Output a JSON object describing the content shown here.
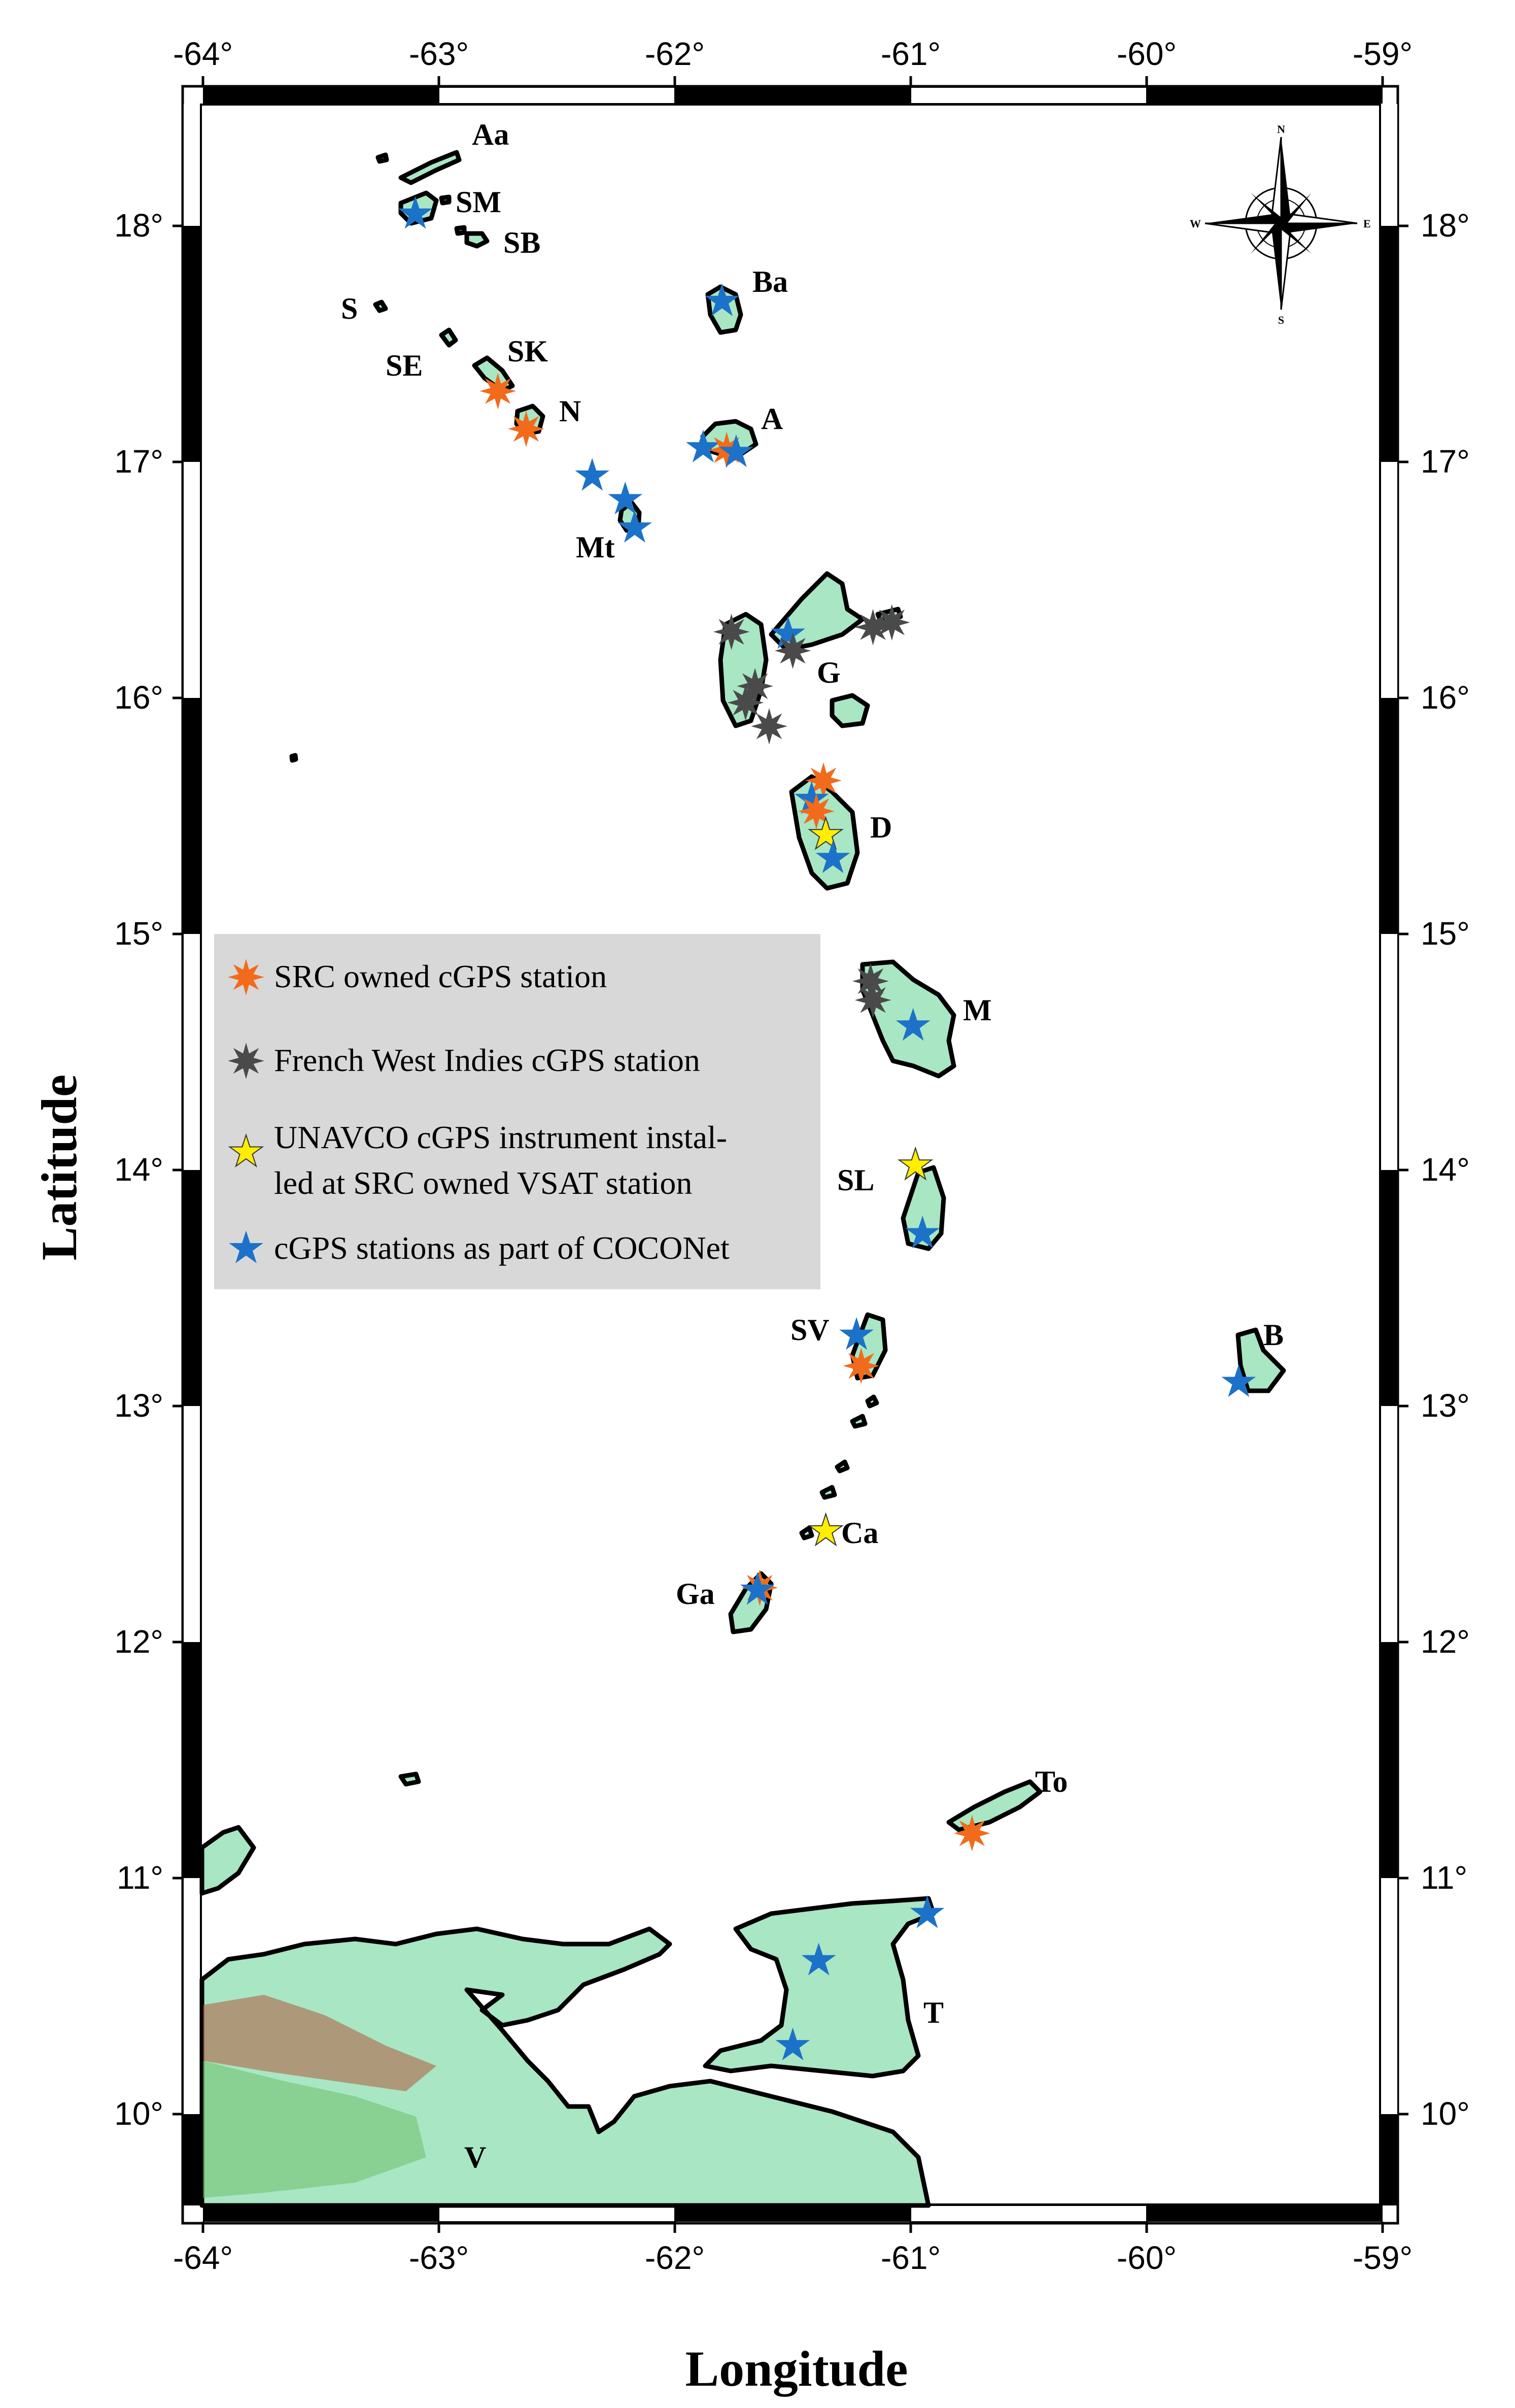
{
  "axes": {
    "xlabel": "Longitude",
    "ylabel": "Latitude",
    "lon_ticks": [
      "-64°",
      "-63°",
      "-62°",
      "-61°",
      "-60°",
      "-59°"
    ],
    "lat_ticks": [
      "10°",
      "11°",
      "12°",
      "13°",
      "14°",
      "15°",
      "16°",
      "17°",
      "18°"
    ],
    "lon_range": [
      -64,
      -59
    ],
    "lat_range": [
      9.5,
      18.6
    ]
  },
  "compass": {
    "n": "N",
    "s": "S",
    "e": "E",
    "w": "W"
  },
  "legend": {
    "items": [
      {
        "id": "src",
        "text": "SRC owned cGPS station",
        "color": "#f26a1b",
        "symbol": "burst"
      },
      {
        "id": "fwi",
        "text": "French West Indies cGPS station",
        "color": "#4a4a4a",
        "symbol": "burst"
      },
      {
        "id": "unavco",
        "line1": "UNAVCO cGPS instrument instal-",
        "line2": "led at SRC owned VSAT station",
        "color": "#ffee00",
        "symbol": "star"
      },
      {
        "id": "coconet",
        "text": "cGPS stations as part of COCONet",
        "color": "#1c72c8",
        "symbol": "star"
      }
    ]
  },
  "islands": [
    {
      "code": "Aa"
    },
    {
      "code": "SM"
    },
    {
      "code": "SB"
    },
    {
      "code": "S"
    },
    {
      "code": "SE"
    },
    {
      "code": "SK"
    },
    {
      "code": "N"
    },
    {
      "code": "Ba"
    },
    {
      "code": "A"
    },
    {
      "code": "Mt"
    },
    {
      "code": "G"
    },
    {
      "code": "D"
    },
    {
      "code": "M"
    },
    {
      "code": "SL"
    },
    {
      "code": "SV"
    },
    {
      "code": "B"
    },
    {
      "code": "Ca"
    },
    {
      "code": "Ga"
    },
    {
      "code": "To"
    },
    {
      "code": "T"
    },
    {
      "code": "V"
    }
  ],
  "stations": [
    {
      "type": "coconet",
      "lon": -63.1,
      "lat": 18.05
    },
    {
      "type": "coconet",
      "lon": -61.8,
      "lat": 17.68
    },
    {
      "type": "src",
      "lon": -62.75,
      "lat": 17.3
    },
    {
      "type": "src",
      "lon": -62.63,
      "lat": 17.14
    },
    {
      "type": "coconet",
      "lon": -61.88,
      "lat": 17.06
    },
    {
      "type": "src",
      "lon": -61.78,
      "lat": 17.05
    },
    {
      "type": "coconet",
      "lon": -61.74,
      "lat": 17.04
    },
    {
      "type": "coconet",
      "lon": -62.35,
      "lat": 16.94
    },
    {
      "type": "coconet",
      "lon": -62.21,
      "lat": 16.84
    },
    {
      "type": "coconet",
      "lon": -62.17,
      "lat": 16.72
    },
    {
      "type": "fwi",
      "lon": -61.76,
      "lat": 16.28
    },
    {
      "type": "coconet",
      "lon": -61.52,
      "lat": 16.27
    },
    {
      "type": "fwi",
      "lon": -61.5,
      "lat": 16.2
    },
    {
      "type": "fwi",
      "lon": -61.16,
      "lat": 16.3
    },
    {
      "type": "fwi",
      "lon": -61.08,
      "lat": 16.32
    },
    {
      "type": "fwi",
      "lon": -61.66,
      "lat": 16.05
    },
    {
      "type": "fwi",
      "lon": -61.7,
      "lat": 15.98
    },
    {
      "type": "fwi",
      "lon": -61.6,
      "lat": 15.88
    },
    {
      "type": "src",
      "lon": -61.37,
      "lat": 15.65
    },
    {
      "type": "coconet",
      "lon": -61.42,
      "lat": 15.57
    },
    {
      "type": "src",
      "lon": -61.4,
      "lat": 15.52
    },
    {
      "type": "unavco",
      "lon": -61.36,
      "lat": 15.42
    },
    {
      "type": "coconet",
      "lon": -61.33,
      "lat": 15.32
    },
    {
      "type": "fwi",
      "lon": -61.17,
      "lat": 14.8
    },
    {
      "type": "fwi",
      "lon": -61.16,
      "lat": 14.72
    },
    {
      "type": "coconet",
      "lon": -60.99,
      "lat": 14.61
    },
    {
      "type": "unavco",
      "lon": -60.98,
      "lat": 14.02
    },
    {
      "type": "coconet",
      "lon": -60.95,
      "lat": 13.73
    },
    {
      "type": "coconet",
      "lon": -61.23,
      "lat": 13.3
    },
    {
      "type": "src",
      "lon": -61.21,
      "lat": 13.17
    },
    {
      "type": "coconet",
      "lon": -59.61,
      "lat": 13.1
    },
    {
      "type": "unavco",
      "lon": -61.36,
      "lat": 12.47
    },
    {
      "type": "src",
      "lon": -61.64,
      "lat": 12.23
    },
    {
      "type": "coconet",
      "lon": -61.65,
      "lat": 12.22
    },
    {
      "type": "src",
      "lon": -60.74,
      "lat": 11.19
    },
    {
      "type": "coconet",
      "lon": -60.93,
      "lat": 10.85
    },
    {
      "type": "coconet",
      "lon": -61.39,
      "lat": 10.65
    },
    {
      "type": "coconet",
      "lon": -61.5,
      "lat": 10.29
    }
  ]
}
